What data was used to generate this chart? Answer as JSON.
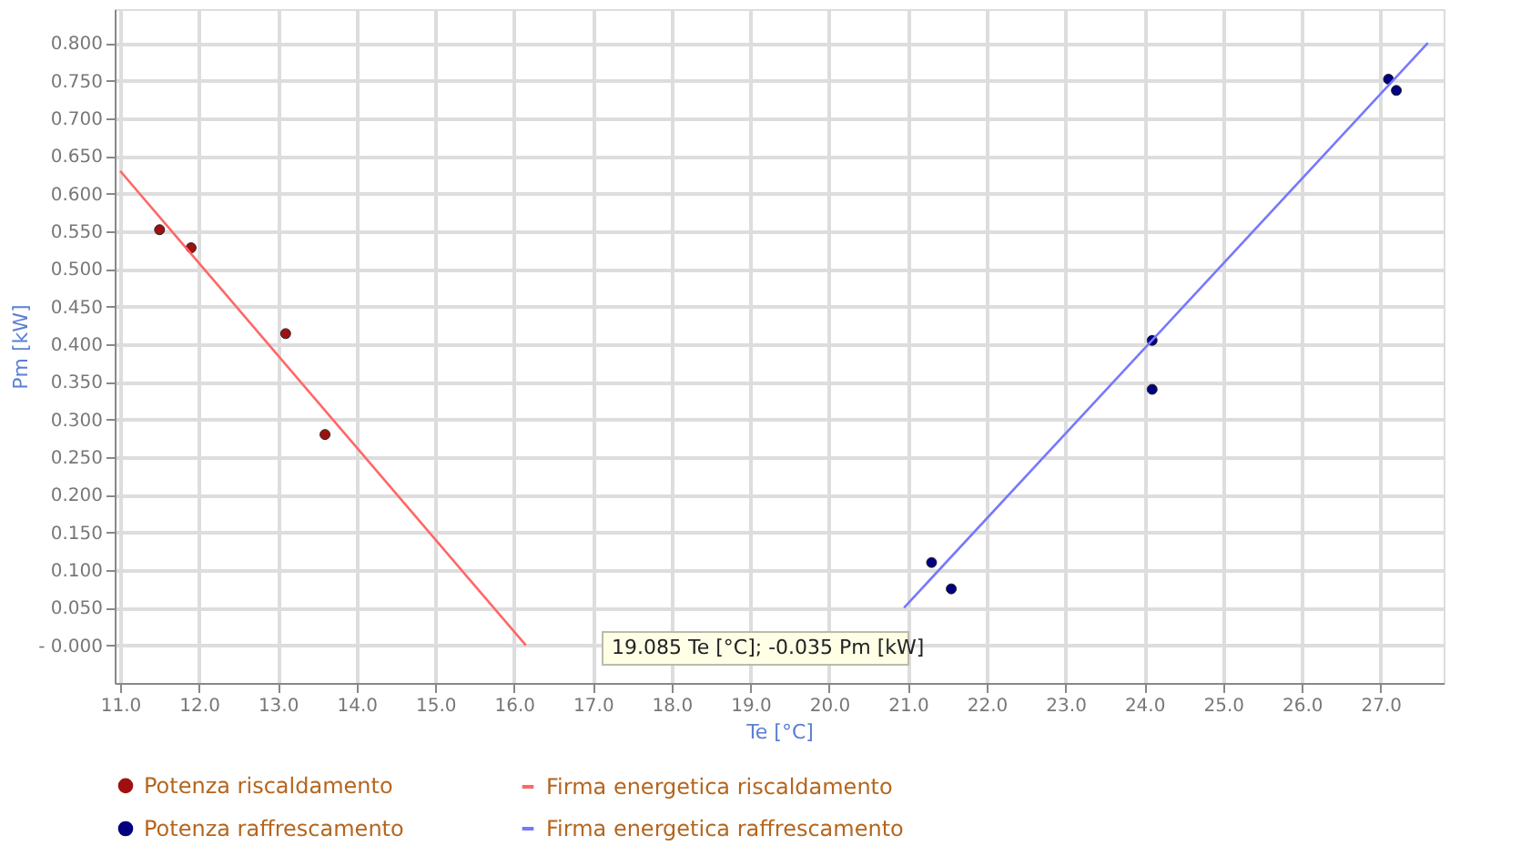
{
  "chart_data": {
    "type": "scatter",
    "xlabel": "Te [°C]",
    "ylabel": "Pm [kW]",
    "series": [
      {
        "name": "Potenza riscaldamento",
        "marker": "circle",
        "color": "#a01010",
        "x": [
          11.5,
          11.9,
          13.1,
          13.6
        ],
        "values": [
          0.552,
          0.528,
          0.414,
          0.28
        ]
      },
      {
        "name": "Firma energetica riscaldamento",
        "type": "line",
        "marker": "none",
        "line_style": "solid",
        "color": "#ff6666",
        "x": [
          11.0,
          16.15
        ],
        "values": [
          0.63,
          0.0
        ]
      },
      {
        "name": "Potenza raffrescamento",
        "marker": "circle",
        "color": "#000080",
        "x": [
          21.3,
          21.55,
          24.1,
          24.1,
          27.1,
          27.2
        ],
        "values": [
          0.11,
          0.075,
          0.405,
          0.34,
          0.752,
          0.737
        ]
      },
      {
        "name": "Firma energetica raffrescamento",
        "type": "line",
        "marker": "none",
        "line_style": "solid",
        "color": "#7777ff",
        "x": [
          20.95,
          27.6
        ],
        "values": [
          0.05,
          0.8
        ]
      }
    ],
    "xlim": [
      10.93,
      27.8
    ],
    "ylim": [
      -0.05,
      0.845
    ],
    "xticks": [
      {
        "value": 11,
        "label": "11.0"
      },
      {
        "value": 12,
        "label": "12.0"
      },
      {
        "value": 13,
        "label": "13.0"
      },
      {
        "value": 14,
        "label": "14.0"
      },
      {
        "value": 15,
        "label": "15.0"
      },
      {
        "value": 16,
        "label": "16.0"
      },
      {
        "value": 17,
        "label": "17.0"
      },
      {
        "value": 18,
        "label": "18.0"
      },
      {
        "value": 19,
        "label": "19.0"
      },
      {
        "value": 20,
        "label": "20.0"
      },
      {
        "value": 21,
        "label": "21.0"
      },
      {
        "value": 22,
        "label": "22.0"
      },
      {
        "value": 23,
        "label": "23.0"
      },
      {
        "value": 24,
        "label": "24.0"
      },
      {
        "value": 25,
        "label": "25.0"
      },
      {
        "value": 26,
        "label": "26.0"
      },
      {
        "value": 27,
        "label": "27.0"
      }
    ],
    "yticks": [
      {
        "value": 0,
        "label": "- 0.000"
      },
      {
        "value": 0.05,
        "label": "0.050"
      },
      {
        "value": 0.1,
        "label": "0.100"
      },
      {
        "value": 0.15,
        "label": "0.150"
      },
      {
        "value": 0.2,
        "label": "0.200"
      },
      {
        "value": 0.25,
        "label": "0.250"
      },
      {
        "value": 0.3,
        "label": "0.300"
      },
      {
        "value": 0.35,
        "label": "0.350"
      },
      {
        "value": 0.4,
        "label": "0.400"
      },
      {
        "value": 0.45,
        "label": "0.450"
      },
      {
        "value": 0.5,
        "label": "0.500"
      },
      {
        "value": 0.55,
        "label": "0.550"
      },
      {
        "value": 0.6,
        "label": "0.600"
      },
      {
        "value": 0.65,
        "label": "0.650"
      },
      {
        "value": 0.7,
        "label": "0.700"
      },
      {
        "value": 0.75,
        "label": "0.750"
      },
      {
        "value": 0.8,
        "label": "0.800"
      }
    ],
    "annotations": [
      "19.085 Te [°C]; -0.035 Pm [kW]"
    ],
    "grid": true,
    "legend": "bottom"
  }
}
